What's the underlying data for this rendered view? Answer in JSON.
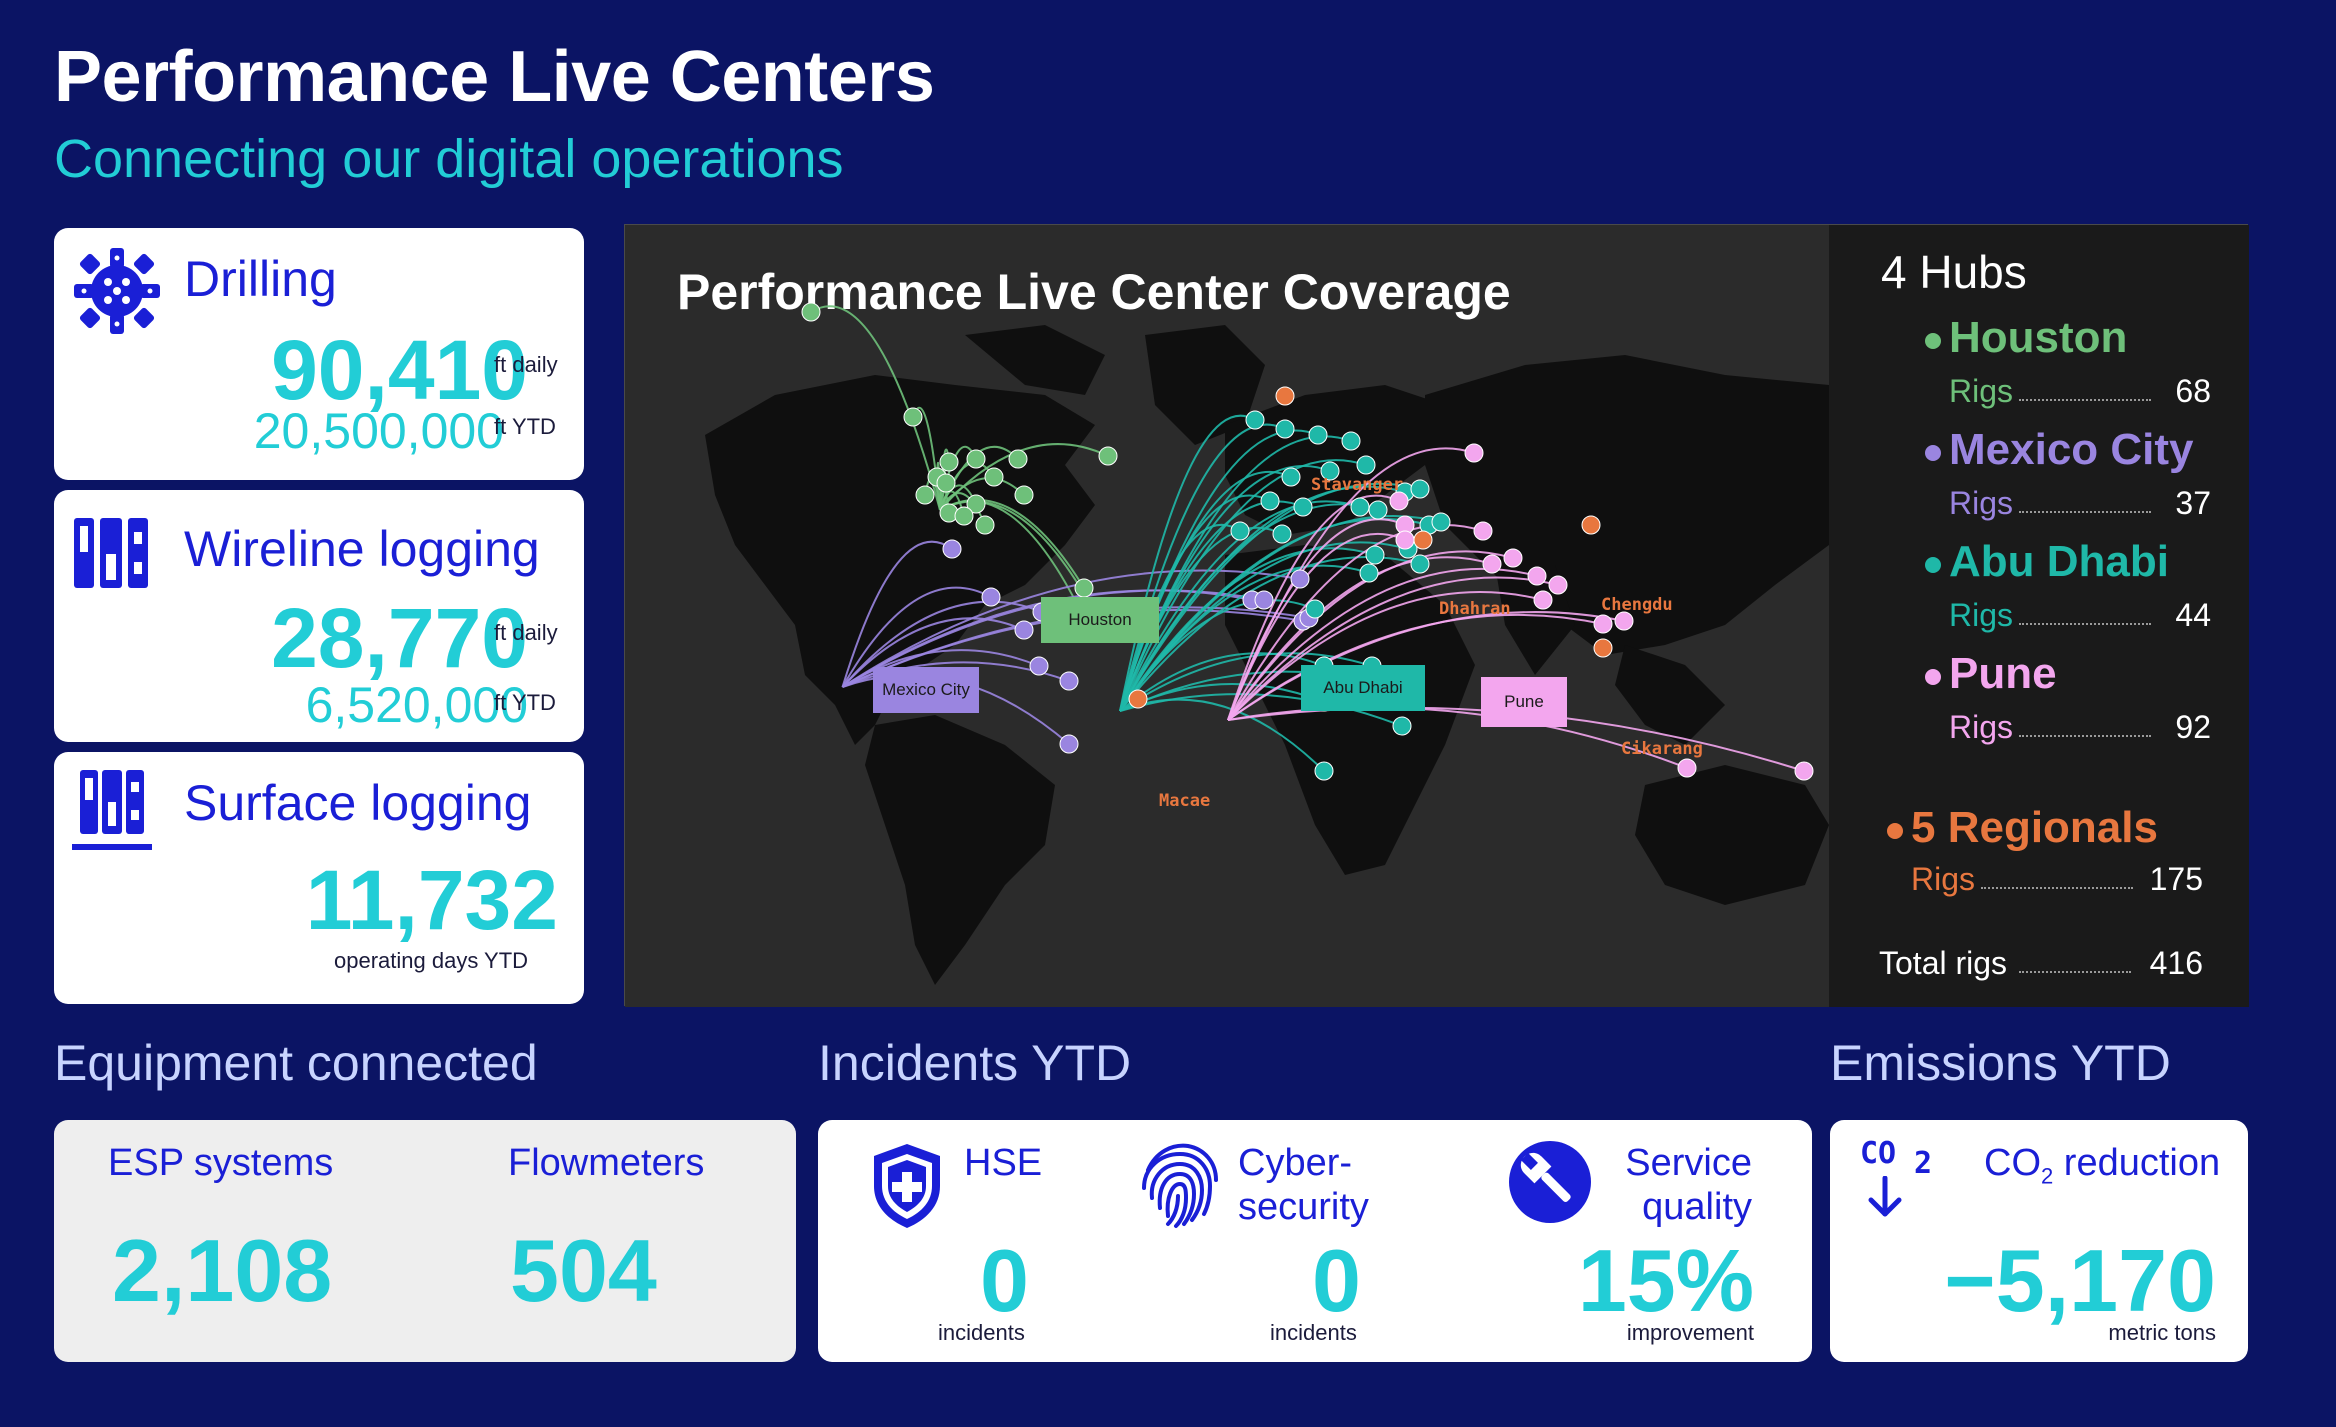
{
  "header": {
    "title": "Performance Live Centers",
    "subtitle": "Connecting our digital  operations"
  },
  "kpis": {
    "drilling": {
      "title": "Drilling",
      "daily_value": "90,410",
      "daily_unit": "ft daily",
      "ytd_value": "20,500,000",
      "ytd_unit": "ft YTD",
      "icon": "drill-bit-icon"
    },
    "wireline": {
      "title": "Wireline logging",
      "daily_value": "28,770",
      "daily_unit": "ft daily",
      "ytd_value": "6,520,000",
      "ytd_unit": "ft YTD",
      "icon": "logging-tool-icon"
    },
    "surface": {
      "title": "Surface logging",
      "value": "11,732",
      "unit": "operating days YTD",
      "icon": "surface-logging-icon"
    }
  },
  "map": {
    "title": "Performance Live Center Coverage",
    "hub_labels": {
      "houston": "Houston",
      "mexico_city": "Mexico City",
      "abu_dhabi": "Abu Dhabi",
      "pune": "Pune"
    },
    "regional_labels": {
      "stavanger": "Stavanger",
      "dhahran": "Dhahran",
      "chengdu": "Chengdu",
      "cikarang": "Cikarang",
      "macae": "Macae"
    },
    "colors": {
      "houston": "#6ec07a",
      "mexico_city": "#9a85e0",
      "abu_dhabi": "#1fb8a8",
      "pune": "#f3a6ee",
      "regional": "#e8773f"
    }
  },
  "hubs": {
    "heading": "4 Hubs",
    "items": [
      {
        "name": "Houston",
        "rigs_label": "Rigs",
        "rigs": "68",
        "color": "#6ec07a"
      },
      {
        "name": "Mexico City",
        "rigs_label": "Rigs",
        "rigs": "37",
        "color": "#9a85e0"
      },
      {
        "name": "Abu Dhabi",
        "rigs_label": "Rigs",
        "rigs": "44",
        "color": "#1fb8a8"
      },
      {
        "name": "Pune",
        "rigs_label": "Rigs",
        "rigs": "92",
        "color": "#f3a6ee"
      }
    ],
    "regionals": {
      "name": "5 Regionals",
      "rigs_label": "Rigs",
      "rigs": "175",
      "color": "#e8773f"
    },
    "total": {
      "label": "Total rigs",
      "value": "416"
    }
  },
  "equipment": {
    "section_title": "Equipment connected",
    "esp_label": "ESP systems",
    "esp_value": "2,108",
    "flow_label": "Flowmeters",
    "flow_value": "504"
  },
  "incidents": {
    "section_title": "Incidents YTD",
    "hse_label": "HSE",
    "hse_value": "0",
    "hse_unit": "incidents",
    "cyber_label_1": "Cyber-",
    "cyber_label_2": "security",
    "cyber_value": "0",
    "cyber_unit": "incidents",
    "service_label_1": "Service",
    "service_label_2": "quality",
    "service_value": "15%",
    "service_unit": "improvement"
  },
  "emissions": {
    "section_title": "Emissions YTD",
    "label_prefix": "CO",
    "label_sub": "2",
    "label_suffix": " reduction",
    "icon_text": "CO",
    "icon_sub": "2",
    "value": "−5,170",
    "unit": "metric tons"
  }
}
